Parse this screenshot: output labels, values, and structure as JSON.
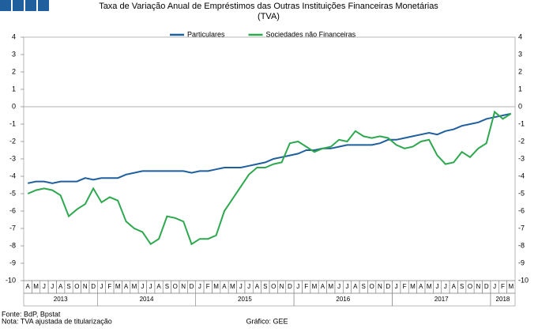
{
  "chart_data": {
    "type": "line",
    "title": "Taxa de Variação Anual de Empréstimos das Outras Instituições Financeiras Monetárias",
    "subtitle": "(TVA)",
    "categories": [
      "A",
      "M",
      "J",
      "J",
      "A",
      "S",
      "O",
      "N",
      "D",
      "J",
      "F",
      "M",
      "A",
      "M",
      "J",
      "J",
      "A",
      "S",
      "O",
      "N",
      "D",
      "J",
      "F",
      "M",
      "A",
      "M",
      "J",
      "J",
      "A",
      "S",
      "O",
      "N",
      "D",
      "J",
      "F",
      "M",
      "A",
      "M",
      "J",
      "J",
      "A",
      "S",
      "O",
      "N",
      "D",
      "J",
      "F",
      "M",
      "A",
      "M",
      "J",
      "J",
      "A",
      "S",
      "O",
      "N",
      "D",
      "J",
      "F",
      "M"
    ],
    "years": [
      "2013",
      "2014",
      "2015",
      "2016",
      "2017",
      "2018"
    ],
    "series": [
      {
        "name": "Particulares",
        "color": "#1f5f9e",
        "values": [
          -4.4,
          -4.3,
          -4.3,
          -4.4,
          -4.3,
          -4.3,
          -4.3,
          -4.1,
          -4.2,
          -4.1,
          -4.1,
          -4.1,
          -3.9,
          -3.8,
          -3.7,
          -3.7,
          -3.7,
          -3.7,
          -3.7,
          -3.7,
          -3.8,
          -3.7,
          -3.7,
          -3.6,
          -3.5,
          -3.5,
          -3.5,
          -3.4,
          -3.3,
          -3.2,
          -3.0,
          -2.9,
          -2.8,
          -2.7,
          -2.5,
          -2.5,
          -2.4,
          -2.4,
          -2.3,
          -2.2,
          -2.2,
          -2.2,
          -2.2,
          -2.1,
          -1.9,
          -1.9,
          -1.8,
          -1.7,
          -1.6,
          -1.5,
          -1.6,
          -1.4,
          -1.3,
          -1.1,
          -1.0,
          -0.9,
          -0.7,
          -0.6,
          -0.5,
          -0.4
        ]
      },
      {
        "name": "Sociedades não Financeiras",
        "color": "#2ea84f",
        "values": [
          -5.0,
          -4.8,
          -4.7,
          -4.8,
          -5.1,
          -6.3,
          -5.9,
          -5.6,
          -4.7,
          -5.5,
          -5.2,
          -5.4,
          -6.6,
          -7.0,
          -7.2,
          -7.9,
          -7.6,
          -6.3,
          -6.4,
          -6.6,
          -7.9,
          -7.6,
          -7.6,
          -7.4,
          -6.0,
          -5.3,
          -4.6,
          -3.9,
          -3.5,
          -3.5,
          -3.3,
          -3.2,
          -2.1,
          -2.0,
          -2.3,
          -2.6,
          -2.4,
          -2.3,
          -1.9,
          -2.0,
          -1.4,
          -1.7,
          -1.8,
          -1.7,
          -1.8,
          -2.2,
          -2.4,
          -2.3,
          -2.0,
          -1.9,
          -2.8,
          -3.3,
          -3.2,
          -2.6,
          -2.9,
          -2.4,
          -2.1,
          -0.3,
          -0.7,
          -0.4
        ]
      }
    ],
    "ylim": [
      -10,
      4
    ],
    "yticks": [
      -10,
      -9,
      -8,
      -7,
      -6,
      -5,
      -4,
      -3,
      -2,
      -1,
      0,
      1,
      2,
      3,
      4
    ],
    "footer": {
      "source": "Fonte: BdP, Bpstat",
      "note": "Nota: TVA ajustada de titularização",
      "credit": "Gráfico: GEE"
    }
  }
}
